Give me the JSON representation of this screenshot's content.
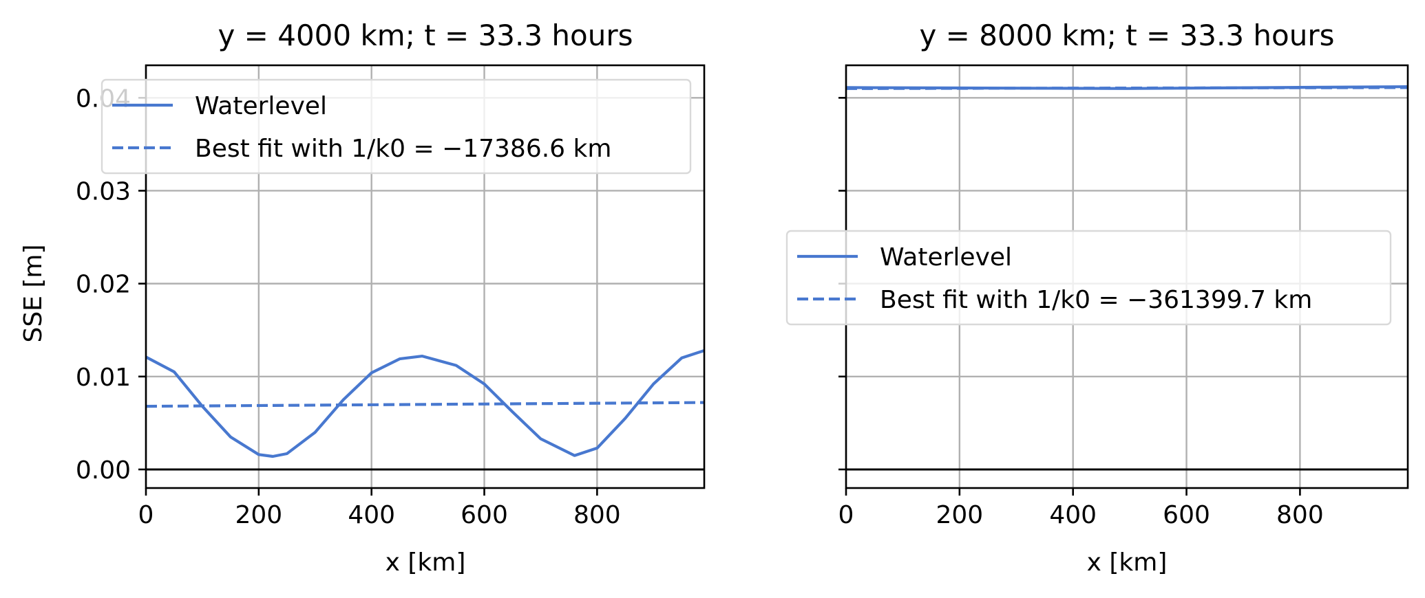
{
  "chart_data": [
    {
      "type": "line",
      "title": "y = 4000 km; t = 33.3 hours",
      "xlabel": "x [km]",
      "ylabel": "SSE [m]",
      "xlim": [
        0,
        990
      ],
      "ylim": [
        -0.002,
        0.0435
      ],
      "xticks": [
        0,
        200,
        400,
        600,
        800
      ],
      "xtick_labels": [
        "0",
        "200",
        "400",
        "600",
        "800"
      ],
      "yticks": [
        0.0,
        0.01,
        0.02,
        0.03,
        0.04
      ],
      "ytick_labels": [
        "0.00",
        "0.01",
        "0.02",
        "0.03",
        "0.04"
      ],
      "grid": true,
      "legend": "upper-left",
      "zero_line": true,
      "series": [
        {
          "name": "Waterlevel",
          "style": "solid",
          "color": "#4878CF",
          "x": [
            0,
            50,
            100,
            150,
            200,
            225,
            250,
            300,
            350,
            400,
            450,
            490,
            550,
            600,
            650,
            700,
            760,
            800,
            850,
            900,
            950,
            990
          ],
          "y": [
            0.0121,
            0.0105,
            0.0068,
            0.0035,
            0.0016,
            0.0014,
            0.0017,
            0.004,
            0.0075,
            0.0104,
            0.0119,
            0.0122,
            0.0112,
            0.0092,
            0.0062,
            0.0033,
            0.0015,
            0.0023,
            0.0055,
            0.0092,
            0.012,
            0.0128
          ]
        },
        {
          "name": "Best fit with 1/k0 = −17386.6 km",
          "style": "dashed",
          "color": "#4878CF",
          "x": [
            0,
            990
          ],
          "y": [
            0.0068,
            0.0072
          ]
        }
      ]
    },
    {
      "type": "line",
      "title": "y = 8000 km; t = 33.3 hours",
      "xlabel": "x [km]",
      "ylabel": "",
      "xlim": [
        0,
        990
      ],
      "ylim": [
        -0.002,
        0.0435
      ],
      "xticks": [
        0,
        200,
        400,
        600,
        800
      ],
      "xtick_labels": [
        "0",
        "200",
        "400",
        "600",
        "800"
      ],
      "yticks": [
        0.0,
        0.01,
        0.02,
        0.03,
        0.04
      ],
      "ytick_labels": [
        "",
        "",
        "",
        "",
        ""
      ],
      "grid": true,
      "legend": "center-left",
      "zero_line": true,
      "series": [
        {
          "name": "Waterlevel",
          "style": "solid",
          "color": "#4878CF",
          "x": [
            0,
            495,
            990
          ],
          "y": [
            0.0411,
            0.041,
            0.0412
          ]
        },
        {
          "name": "Best fit with 1/k0 = −361399.7 km",
          "style": "dashed",
          "color": "#4878CF",
          "x": [
            0,
            990
          ],
          "y": [
            0.041,
            0.0411
          ]
        }
      ]
    }
  ]
}
